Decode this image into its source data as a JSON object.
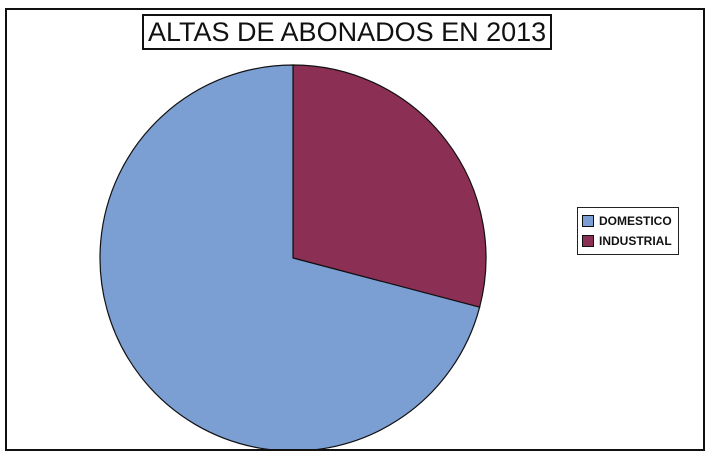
{
  "chart_data": {
    "type": "pie",
    "title": "ALTAS DE ABONADOS EN 2013",
    "categories": [
      "DOMESTICO",
      "INDUSTRIAL"
    ],
    "values": [
      70.9,
      29.1
    ],
    "colors": [
      "#7c9fd3",
      "#8c2f55"
    ],
    "legend_position": "right",
    "start_angle": "12 o'clock, industrial clockwise"
  }
}
